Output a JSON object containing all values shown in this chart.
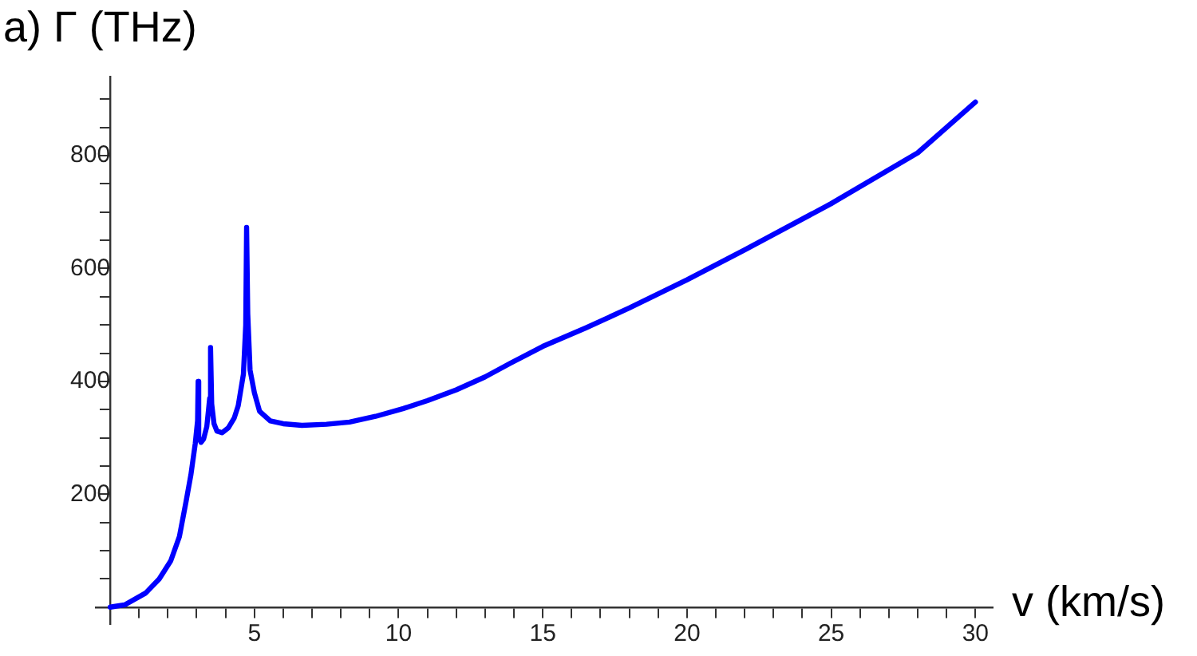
{
  "chart_data": {
    "type": "line",
    "xlabel": "v (km/s)",
    "ylabel": "a) Γ (THz)",
    "xlim": [
      -0.5,
      30.6
    ],
    "ylim": [
      -30,
      940
    ],
    "xticks": [
      {
        "value": 1,
        "label": null
      },
      {
        "value": 2,
        "label": null
      },
      {
        "value": 3,
        "label": null
      },
      {
        "value": 4,
        "label": null
      },
      5,
      {
        "value": 6,
        "label": null
      },
      {
        "value": 7,
        "label": null
      },
      {
        "value": 8,
        "label": null
      },
      {
        "value": 9,
        "label": null
      },
      10,
      {
        "value": 11,
        "label": null
      },
      {
        "value": 12,
        "label": null
      },
      {
        "value": 13,
        "label": null
      },
      {
        "value": 14,
        "label": null
      },
      15,
      {
        "value": 16,
        "label": null
      },
      {
        "value": 17,
        "label": null
      },
      {
        "value": 18,
        "label": null
      },
      {
        "value": 19,
        "label": null
      },
      20,
      {
        "value": 21,
        "label": null
      },
      {
        "value": 22,
        "label": null
      },
      {
        "value": 23,
        "label": null
      },
      {
        "value": 24,
        "label": null
      },
      25,
      {
        "value": 26,
        "label": null
      },
      {
        "value": 27,
        "label": null
      },
      {
        "value": 28,
        "label": null
      },
      {
        "value": 29,
        "label": null
      },
      30
    ],
    "yticks": [
      {
        "value": 50,
        "label": null
      },
      {
        "value": 100,
        "label": null
      },
      {
        "value": 150,
        "label": null
      },
      200,
      {
        "value": 250,
        "label": null
      },
      {
        "value": 300,
        "label": null
      },
      {
        "value": 350,
        "label": null
      },
      400,
      {
        "value": 450,
        "label": null
      },
      {
        "value": 500,
        "label": null
      },
      {
        "value": 550,
        "label": null
      },
      600,
      {
        "value": 650,
        "label": null
      },
      {
        "value": 700,
        "label": null
      },
      {
        "value": 750,
        "label": null
      },
      800,
      {
        "value": 850,
        "label": null
      },
      {
        "value": 900,
        "label": null
      }
    ],
    "grid": false,
    "legend": false,
    "marker": "none",
    "line_style": "solid",
    "series": [
      {
        "color": "#0000ff",
        "x": [
          0,
          0.5,
          1.23,
          1.7,
          2.1,
          2.4,
          2.63,
          2.8,
          2.95,
          3.03,
          3.05,
          3.07,
          3.15,
          3.24,
          3.35,
          3.45,
          3.48,
          3.52,
          3.6,
          3.7,
          3.88,
          4.1,
          4.3,
          4.44,
          4.62,
          4.7,
          4.73,
          4.77,
          4.85,
          5.0,
          5.18,
          5.55,
          6.0,
          6.65,
          7.5,
          8.3,
          9.2,
          10.17,
          11,
          12,
          13,
          13.87,
          15,
          16.5,
          18,
          20,
          22,
          25,
          28,
          30
        ],
        "values": [
          0,
          4,
          25,
          50,
          82,
          125,
          187,
          235,
          290,
          330,
          400,
          300,
          292,
          298,
          320,
          370,
          460,
          360,
          325,
          312,
          309,
          318,
          335,
          357,
          413,
          500,
          673,
          520,
          420,
          380,
          347,
          330,
          325,
          322,
          324,
          328,
          338,
          352,
          366,
          385,
          408,
          432,
          462,
          495,
          530,
          580,
          633,
          715,
          805,
          895
        ]
      }
    ]
  }
}
